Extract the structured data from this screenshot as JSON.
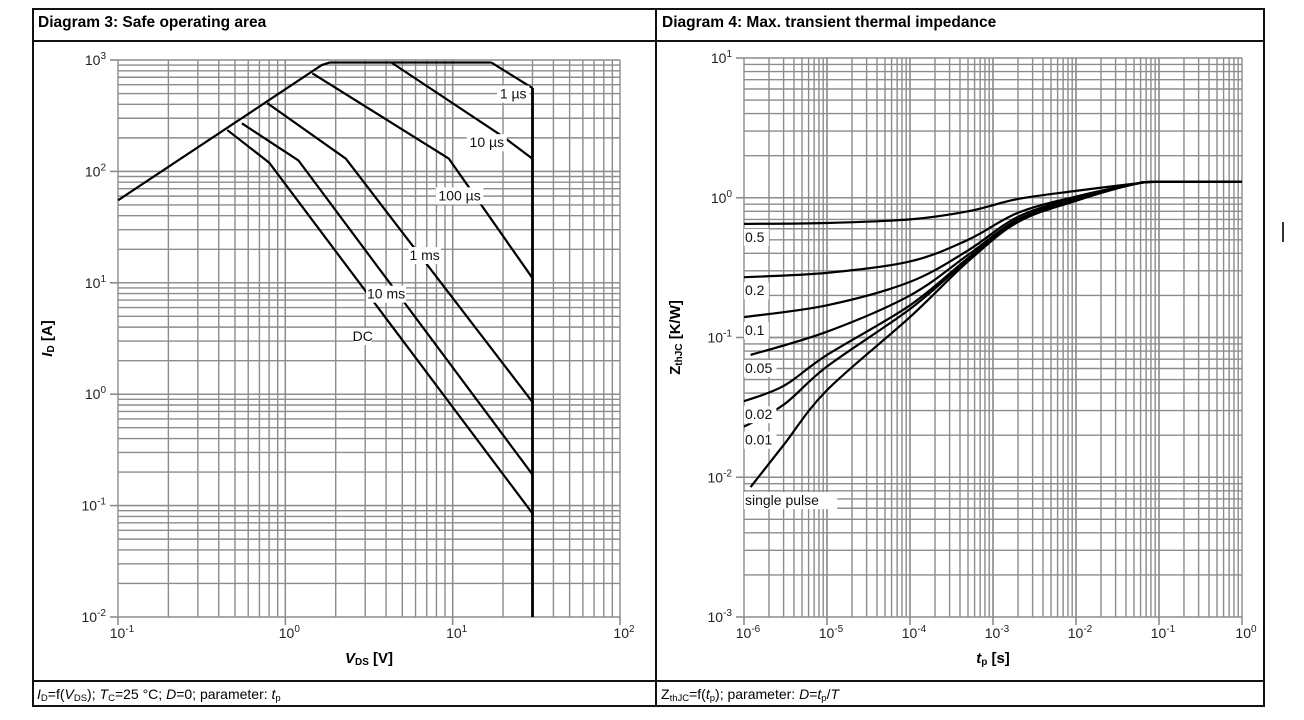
{
  "tables": {
    "left_title": "Diagram 3: Safe operating area",
    "right_title": "Diagram 4: Max. transient thermal impedance",
    "left_caption": {
      "p1": "I",
      "p1s": "D",
      "p2": "=f(",
      "p3": "V",
      "p3s": "DS",
      "p4": "); ",
      "p5": "T",
      "p5s": "C",
      "p6": "=25 °C; ",
      "p7": "D",
      "p8": "=0; parameter: ",
      "p9": "t",
      "p9s": "p"
    },
    "right_caption": {
      "p1": "Z",
      "p1s": "thJC",
      "p2": "=f(",
      "p3": "t",
      "p3s": "p",
      "p4": "); parameter: ",
      "p5": "D",
      "p6": "=",
      "p7": "t",
      "p7s": "p",
      "p8": "/",
      "p9": "T"
    }
  },
  "chart_data": [
    {
      "type": "line",
      "title": "Diagram 3: Safe operating area",
      "xscale": "log",
      "yscale": "log",
      "xlim": [
        0.1,
        100
      ],
      "ylim": [
        0.01,
        1000
      ],
      "xlabel": {
        "main": "V",
        "sub": "DS",
        "unit": " [V]"
      },
      "ylabel": {
        "main": "I",
        "sub": "D",
        "unit": " [A]"
      },
      "xticks": [
        {
          "base": "10",
          "exp": "-1",
          "v": 0.1
        },
        {
          "base": "10",
          "exp": "0",
          "v": 1
        },
        {
          "base": "10",
          "exp": "1",
          "v": 10
        },
        {
          "base": "10",
          "exp": "2",
          "v": 100
        }
      ],
      "yticks": [
        {
          "base": "10",
          "exp": "-2",
          "v": 0.01
        },
        {
          "base": "10",
          "exp": "-1",
          "v": 0.1
        },
        {
          "base": "10",
          "exp": "0",
          "v": 1
        },
        {
          "base": "10",
          "exp": "1",
          "v": 10
        },
        {
          "base": "10",
          "exp": "2",
          "v": 100
        },
        {
          "base": "10",
          "exp": "3",
          "v": 1000
        }
      ],
      "grid": true,
      "series": [
        {
          "name": "RDS(on) limit",
          "points": [
            [
              0.1,
              55
            ],
            [
              1.65,
              900
            ],
            [
              1.85,
              950
            ],
            [
              17,
              950
            ]
          ]
        },
        {
          "name": "1 µs",
          "label": "1 µs",
          "points": [
            [
              17,
              950
            ],
            [
              30,
              560
            ]
          ],
          "label_at": [
            23,
            450
          ]
        },
        {
          "name": "10 µs",
          "label": "10 µs",
          "points": [
            [
              4.3,
              950
            ],
            [
              20,
              205
            ],
            [
              30,
              130
            ]
          ],
          "label_at": [
            16,
            165
          ]
        },
        {
          "name": "100 µs",
          "label": "100 µs",
          "points": [
            [
              1.45,
              760
            ],
            [
              9.5,
              130
            ],
            [
              30,
              11
            ]
          ],
          "label_at": [
            11,
            55
          ]
        },
        {
          "name": "1 ms",
          "label": "1 ms",
          "points": [
            [
              0.78,
              410
            ],
            [
              2.3,
              130
            ],
            [
              30,
              0.85
            ]
          ],
          "label_at": [
            6.8,
            16
          ]
        },
        {
          "name": "10 ms",
          "label": "10 ms",
          "points": [
            [
              0.55,
              270
            ],
            [
              1.2,
              125
            ],
            [
              30,
              0.19
            ]
          ],
          "label_at": [
            4.0,
            7.2
          ]
        },
        {
          "name": "DC",
          "label": "DC",
          "points": [
            [
              0.45,
              235
            ],
            [
              0.8,
              120
            ],
            [
              30,
              0.085
            ]
          ],
          "label_at": [
            2.9,
            3.0
          ]
        },
        {
          "name": "VDS limit",
          "points": [
            [
              30,
              560
            ],
            [
              30,
              0.01
            ]
          ]
        }
      ]
    },
    {
      "type": "line",
      "title": "Diagram 4: Max. transient thermal impedance",
      "xscale": "log",
      "yscale": "log",
      "xlim": [
        1e-06,
        1
      ],
      "ylim": [
        0.001,
        10
      ],
      "xlabel": {
        "main": "t",
        "sub": "p",
        "unit": " [s]"
      },
      "ylabel": {
        "main": "Z",
        "sub": "thJC",
        "unit": " [K/W]"
      },
      "xticks": [
        {
          "base": "10",
          "exp": "-6",
          "v": 1e-06
        },
        {
          "base": "10",
          "exp": "-5",
          "v": 1e-05
        },
        {
          "base": "10",
          "exp": "-4",
          "v": 0.0001
        },
        {
          "base": "10",
          "exp": "-3",
          "v": 0.001
        },
        {
          "base": "10",
          "exp": "-2",
          "v": 0.01
        },
        {
          "base": "10",
          "exp": "-1",
          "v": 0.1
        },
        {
          "base": "10",
          "exp": "0",
          "v": 1
        }
      ],
      "yticks": [
        {
          "base": "10",
          "exp": "-3",
          "v": 0.001
        },
        {
          "base": "10",
          "exp": "-2",
          "v": 0.01
        },
        {
          "base": "10",
          "exp": "-1",
          "v": 0.1
        },
        {
          "base": "10",
          "exp": "0",
          "v": 1
        },
        {
          "base": "10",
          "exp": "1",
          "v": 10
        }
      ],
      "grid": true,
      "series": [
        {
          "name": "D=0.5",
          "label": "0.5",
          "points": [
            [
              1e-06,
              0.65
            ],
            [
              1e-05,
              0.66
            ],
            [
              0.0001,
              0.7
            ],
            [
              0.0005,
              0.8
            ],
            [
              0.002,
              0.98
            ],
            [
              0.01,
              1.12
            ],
            [
              0.05,
              1.26
            ],
            [
              0.1,
              1.3
            ],
            [
              1,
              1.3
            ]
          ]
        },
        {
          "name": "D=0.2",
          "label": "0.2",
          "points": [
            [
              1e-06,
              0.27
            ],
            [
              1e-05,
              0.29
            ],
            [
              0.0001,
              0.35
            ],
            [
              0.0005,
              0.5
            ],
            [
              0.002,
              0.78
            ],
            [
              0.01,
              1.02
            ],
            [
              0.05,
              1.25
            ],
            [
              0.1,
              1.3
            ],
            [
              1,
              1.3
            ]
          ]
        },
        {
          "name": "D=0.1",
          "label": "0.1",
          "points": [
            [
              1e-06,
              0.14
            ],
            [
              1e-05,
              0.17
            ],
            [
              0.0001,
              0.25
            ],
            [
              0.0005,
              0.42
            ],
            [
              0.002,
              0.73
            ],
            [
              0.01,
              1.0
            ],
            [
              0.05,
              1.25
            ],
            [
              0.1,
              1.3
            ],
            [
              1,
              1.3
            ]
          ]
        },
        {
          "name": "D=0.05",
          "label": "0.05",
          "points": [
            [
              1.2e-06,
              0.075
            ],
            [
              1e-05,
              0.11
            ],
            [
              0.0001,
              0.2
            ],
            [
              0.0005,
              0.39
            ],
            [
              0.002,
              0.7
            ],
            [
              0.01,
              0.98
            ],
            [
              0.05,
              1.25
            ],
            [
              0.1,
              1.3
            ],
            [
              1,
              1.3
            ]
          ]
        },
        {
          "name": "D=0.02",
          "label": "0.02",
          "points": [
            [
              1e-06,
              0.035
            ],
            [
              3e-06,
              0.045
            ],
            [
              1e-05,
              0.075
            ],
            [
              0.0001,
              0.17
            ],
            [
              0.0005,
              0.37
            ],
            [
              0.002,
              0.69
            ],
            [
              0.01,
              0.97
            ],
            [
              0.05,
              1.25
            ],
            [
              0.1,
              1.3
            ],
            [
              1,
              1.3
            ]
          ]
        },
        {
          "name": "D=0.01",
          "label": "0.01",
          "points": [
            [
              1e-06,
              0.023
            ],
            [
              3e-06,
              0.033
            ],
            [
              1e-05,
              0.062
            ],
            [
              0.0001,
              0.16
            ],
            [
              0.0005,
              0.36
            ],
            [
              0.002,
              0.68
            ],
            [
              0.01,
              0.96
            ],
            [
              0.05,
              1.25
            ],
            [
              0.1,
              1.3
            ],
            [
              1,
              1.3
            ]
          ]
        },
        {
          "name": "single pulse",
          "label": "single pulse",
          "points": [
            [
              1.2e-06,
              0.0085
            ],
            [
              3e-06,
              0.017
            ],
            [
              1e-05,
              0.042
            ],
            [
              0.0001,
              0.14
            ],
            [
              0.0005,
              0.35
            ],
            [
              0.002,
              0.67
            ],
            [
              0.01,
              0.95
            ],
            [
              0.05,
              1.25
            ],
            [
              0.1,
              1.3
            ],
            [
              1,
              1.3
            ]
          ]
        }
      ]
    }
  ]
}
